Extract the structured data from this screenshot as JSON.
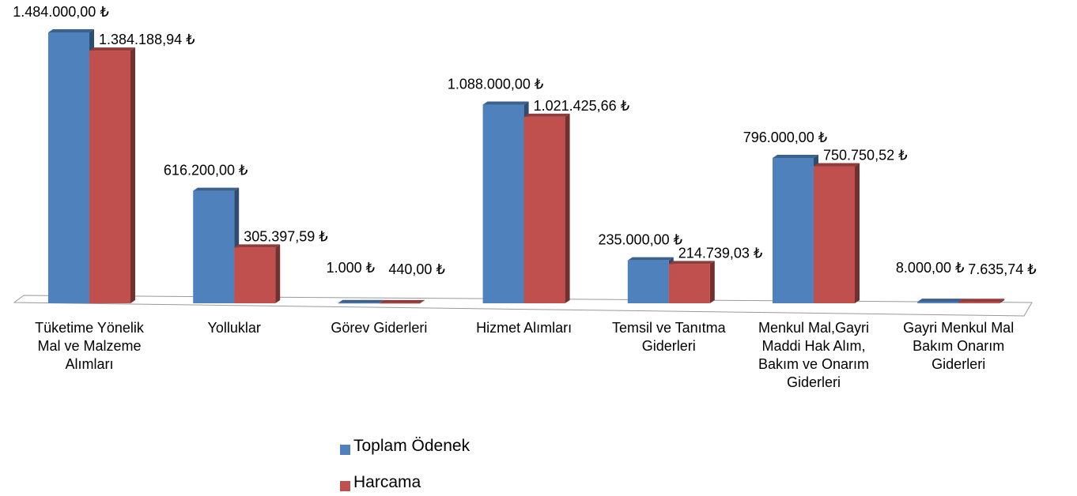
{
  "chart_data": {
    "type": "bar3d",
    "categories": [
      "Tüketime Yönelik  Mal ve Malzeme Alımları",
      "Yolluklar",
      "Görev Giderleri",
      "Hizmet Alımları",
      "Temsil ve Tanıtma Giderleri",
      "Menkul Mal,Gayri Maddi Hak Alım, Bakım ve Onarım Giderleri",
      "Gayri Menkul Mal Bakım Onarım Giderleri"
    ],
    "series": [
      {
        "name": "Toplam Ödenek",
        "color": "#4f81bd",
        "values": [
          1484000,
          616200,
          1000,
          1088000,
          235000,
          796000,
          8000
        ],
        "value_labels": [
          "1.484.000,00 ₺",
          "616.200,00 ₺",
          "1.000 ₺",
          "1.088.000,00 ₺",
          "235.000,00 ₺",
          "796.000,00 ₺",
          "8.000,00 ₺"
        ]
      },
      {
        "name": "Harcama",
        "color": "#c0504d",
        "values": [
          1384188.94,
          305397.59,
          440,
          1021425.66,
          214739.03,
          750750.52,
          7635.74
        ],
        "value_labels": [
          "1.384.188,94 ₺",
          "305.397,59 ₺",
          "440,00 ₺",
          "1.021.425,66 ₺",
          "214.739,03 ₺",
          "750.750,52 ₺",
          "7.635,74 ₺"
        ]
      }
    ],
    "legend": "bottom"
  }
}
